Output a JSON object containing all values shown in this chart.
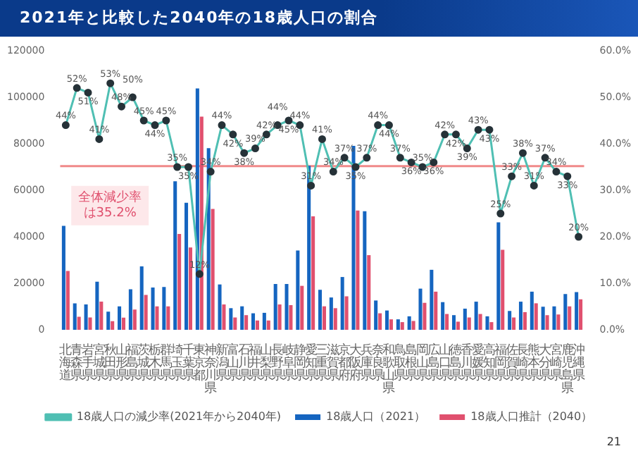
{
  "chart_data": {
    "type": "bar",
    "title": "2021年と比較した2040年の18歳人口の割合",
    "categories": [
      "北海道",
      "青森県",
      "岩手県",
      "宮城県",
      "秋田県",
      "山形県",
      "福島県",
      "茨城県",
      "栃木県",
      "群馬県",
      "埼玉県",
      "千葉県",
      "東京都",
      "神奈川県",
      "新潟県",
      "富山県",
      "石川県",
      "福井県",
      "山梨県",
      "長野県",
      "岐阜県",
      "静岡県",
      "愛知県",
      "三重県",
      "滋賀県",
      "京都府",
      "大阪府",
      "兵庫県",
      "奈良県",
      "和歌山県",
      "鳥取県",
      "島根県",
      "岡山県",
      "広島県",
      "山口県",
      "徳島県",
      "香川県",
      "愛媛県",
      "高知県",
      "福岡県",
      "佐賀県",
      "長崎県",
      "熊本県",
      "大分県",
      "宮崎県",
      "鹿児島県",
      "沖縄県"
    ],
    "series": [
      {
        "name": "18歳人口（2021）",
        "type": "bar",
        "color": "#1565c0",
        "values": [
          44700,
          11400,
          10900,
          20700,
          7800,
          10100,
          17400,
          27300,
          18200,
          18400,
          63900,
          54600,
          103800,
          78100,
          19500,
          9300,
          10100,
          7100,
          7300,
          19700,
          19700,
          34100,
          70500,
          17200,
          13900,
          22700,
          79100,
          51000,
          12600,
          8300,
          4500,
          5800,
          17700,
          25800,
          11900,
          6300,
          9100,
          12100,
          5800,
          46200,
          8100,
          12100,
          16400,
          9900,
          10100,
          15400,
          16200
        ]
      },
      {
        "name": "18歳人口推計（2040）",
        "type": "bar",
        "color": "#e0506e",
        "values": [
          25300,
          5600,
          5300,
          12100,
          3700,
          5200,
          8700,
          15000,
          10100,
          10100,
          41200,
          35400,
          91700,
          52000,
          10900,
          5300,
          6300,
          4000,
          4000,
          10900,
          10600,
          18900,
          48800,
          10100,
          9300,
          14400,
          51300,
          32100,
          7100,
          4500,
          3300,
          3800,
          11600,
          16400,
          6800,
          3500,
          5300,
          6800,
          3300,
          34400,
          5300,
          7600,
          11400,
          6300,
          6600,
          10100,
          13100
        ]
      },
      {
        "name": "18歳人口の減少率(2021年から2040年)",
        "type": "line",
        "axis": "y2",
        "color": "#4fbfb3",
        "values": [
          44,
          52,
          51,
          41,
          53,
          48,
          50,
          45,
          44,
          45,
          35,
          35,
          12,
          34,
          44,
          42,
          38,
          39,
          42,
          44,
          45,
          44,
          31,
          41,
          34,
          37,
          35,
          37,
          44,
          44,
          37,
          36,
          35,
          36,
          42,
          42,
          39,
          43,
          43,
          25,
          33,
          38,
          31,
          37,
          34,
          33,
          20
        ],
        "value_labels": [
          "44%",
          "52%",
          "51%",
          "41%",
          "53%",
          "48%",
          "50%",
          "45%",
          "44%",
          "45%",
          "35%",
          "35%",
          "12%",
          "34%",
          "44%",
          "42%",
          "38%",
          "39%",
          "42%",
          "44%",
          "45%",
          "44%",
          "31%",
          "41%",
          "34%",
          "37%",
          "35%",
          "37%",
          "44%",
          "44%",
          "37%",
          "36%",
          "35%",
          "36%",
          "42%",
          "42%",
          "39%",
          "43%",
          "43%",
          "25%",
          "33%",
          "38%",
          "31%",
          "37%",
          "34%",
          "33%",
          "20%"
        ]
      }
    ],
    "ylim": [
      0,
      120000
    ],
    "yticks": [
      0,
      20000,
      40000,
      60000,
      80000,
      100000,
      120000
    ],
    "y2lim": [
      0,
      60
    ],
    "y2ticks": [
      {
        "value": 0,
        "label": "0.0%"
      },
      {
        "value": 10,
        "label": "10.0%"
      },
      {
        "value": 20,
        "label": "20.0%"
      },
      {
        "value": 30,
        "label": "30.0%"
      },
      {
        "value": 40,
        "label": "40.0%"
      },
      {
        "value": 50,
        "label": "50.0%"
      },
      {
        "value": 60,
        "label": "60.0%"
      }
    ],
    "ref_lines": [
      {
        "axis": "y2",
        "value": 35.2,
        "label": "全体減少率は35.2%",
        "color": "#f08a8a"
      }
    ],
    "annotations": [
      "21"
    ],
    "marker": "circle",
    "legend": "bottom",
    "grid": false
  }
}
